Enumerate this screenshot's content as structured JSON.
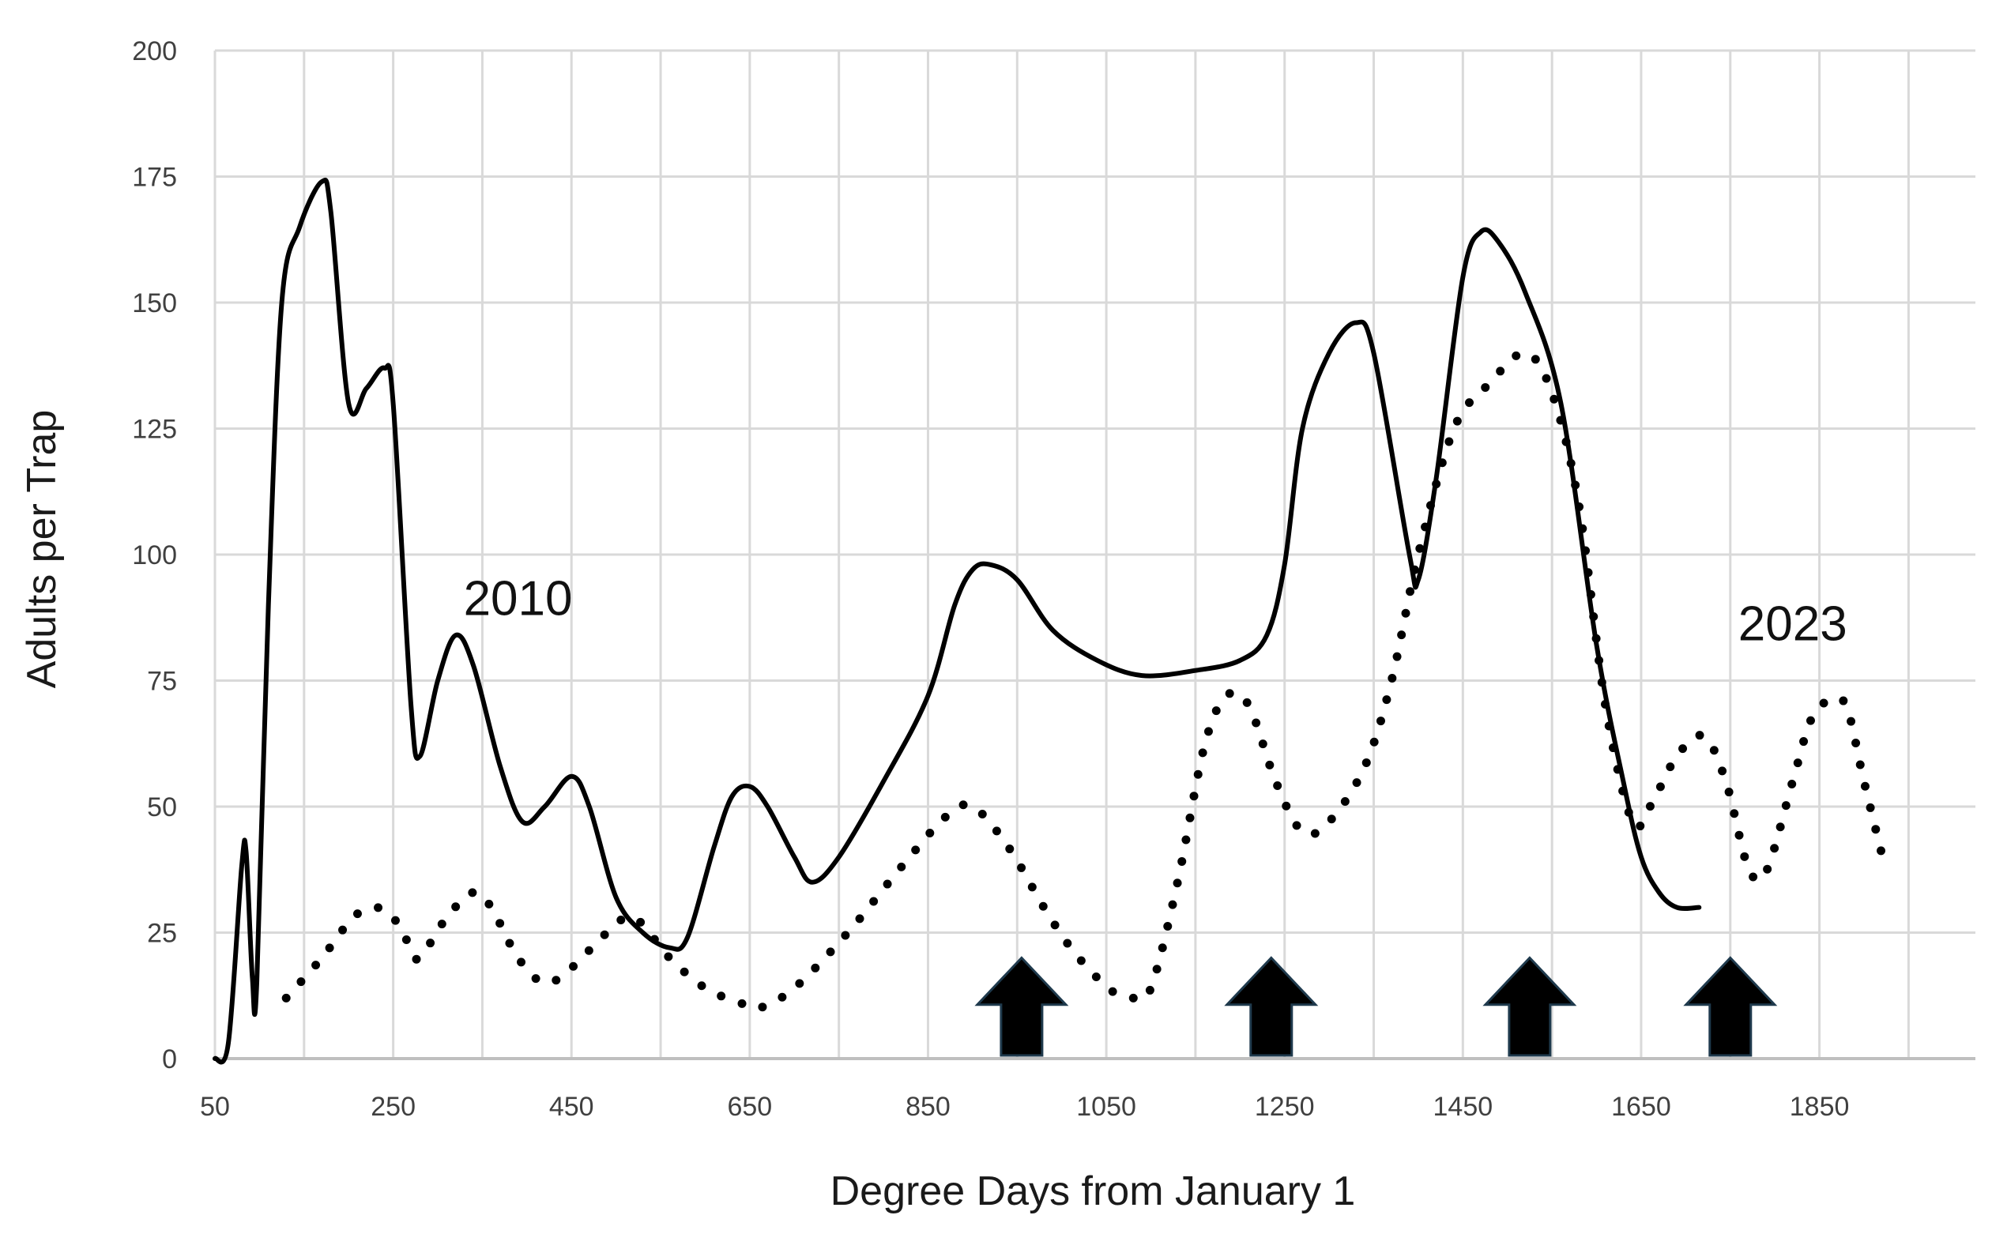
{
  "chart_data": {
    "type": "line",
    "title": "",
    "xlabel": "Degree Days from January 1",
    "ylabel": "Adults per Trap",
    "xlim": [
      50,
      2025
    ],
    "ylim": [
      0,
      200
    ],
    "x_ticks": [
      50,
      250,
      450,
      650,
      850,
      1050,
      1250,
      1450,
      1650,
      1850
    ],
    "y_ticks": [
      0,
      25,
      50,
      75,
      100,
      125,
      150,
      175,
      200
    ],
    "x_gridlines": [
      50,
      150,
      250,
      350,
      450,
      550,
      650,
      750,
      850,
      950,
      1050,
      1150,
      1250,
      1350,
      1450,
      1550,
      1650,
      1750,
      1850,
      1950
    ],
    "grid": true,
    "legend": "none",
    "series": [
      {
        "name": "2010",
        "style": "solid",
        "color": "#000000",
        "points": [
          [
            50,
            0
          ],
          [
            65,
            3
          ],
          [
            80,
            38
          ],
          [
            85,
            41
          ],
          [
            92,
            16
          ],
          [
            97,
            15
          ],
          [
            110,
            90
          ],
          [
            125,
            150
          ],
          [
            145,
            165
          ],
          [
            170,
            174
          ],
          [
            180,
            168
          ],
          [
            200,
            130
          ],
          [
            220,
            133
          ],
          [
            240,
            137
          ],
          [
            250,
            130
          ],
          [
            270,
            70
          ],
          [
            280,
            60
          ],
          [
            300,
            75
          ],
          [
            320,
            84
          ],
          [
            340,
            78
          ],
          [
            370,
            58
          ],
          [
            395,
            47
          ],
          [
            420,
            50
          ],
          [
            450,
            56
          ],
          [
            470,
            50
          ],
          [
            500,
            32
          ],
          [
            530,
            25
          ],
          [
            560,
            22
          ],
          [
            580,
            24
          ],
          [
            610,
            42
          ],
          [
            630,
            52
          ],
          [
            650,
            54
          ],
          [
            670,
            50
          ],
          [
            700,
            40
          ],
          [
            720,
            35
          ],
          [
            750,
            40
          ],
          [
            800,
            55
          ],
          [
            850,
            72
          ],
          [
            880,
            90
          ],
          [
            900,
            97
          ],
          [
            920,
            98
          ],
          [
            950,
            95
          ],
          [
            990,
            85
          ],
          [
            1040,
            79
          ],
          [
            1090,
            76
          ],
          [
            1150,
            77
          ],
          [
            1200,
            79
          ],
          [
            1230,
            84
          ],
          [
            1250,
            98
          ],
          [
            1270,
            125
          ],
          [
            1300,
            140
          ],
          [
            1330,
            146
          ],
          [
            1350,
            140
          ],
          [
            1390,
            100
          ],
          [
            1400,
            95
          ],
          [
            1420,
            115
          ],
          [
            1450,
            155
          ],
          [
            1470,
            164
          ],
          [
            1490,
            162
          ],
          [
            1520,
            152
          ],
          [
            1560,
            130
          ],
          [
            1600,
            82
          ],
          [
            1630,
            55
          ],
          [
            1650,
            40
          ],
          [
            1670,
            33
          ],
          [
            1690,
            30
          ],
          [
            1715,
            30
          ]
        ]
      },
      {
        "name": "2023",
        "style": "dotted",
        "color": "#000000",
        "points": [
          [
            130,
            12
          ],
          [
            170,
            20
          ],
          [
            205,
            28
          ],
          [
            230,
            30
          ],
          [
            250,
            28
          ],
          [
            270,
            22
          ],
          [
            280,
            20
          ],
          [
            310,
            28
          ],
          [
            340,
            33
          ],
          [
            360,
            30
          ],
          [
            390,
            20
          ],
          [
            420,
            15
          ],
          [
            450,
            18
          ],
          [
            490,
            25
          ],
          [
            520,
            28
          ],
          [
            560,
            20
          ],
          [
            600,
            14
          ],
          [
            640,
            11
          ],
          [
            660,
            10
          ],
          [
            700,
            14
          ],
          [
            760,
            25
          ],
          [
            820,
            38
          ],
          [
            870,
            48
          ],
          [
            900,
            50
          ],
          [
            940,
            42
          ],
          [
            980,
            30
          ],
          [
            1010,
            22
          ],
          [
            1040,
            16
          ],
          [
            1060,
            13
          ],
          [
            1080,
            12
          ],
          [
            1100,
            14
          ],
          [
            1130,
            35
          ],
          [
            1160,
            62
          ],
          [
            1185,
            72
          ],
          [
            1210,
            70
          ],
          [
            1240,
            55
          ],
          [
            1270,
            45
          ],
          [
            1300,
            47
          ],
          [
            1340,
            58
          ],
          [
            1370,
            75
          ],
          [
            1400,
            100
          ],
          [
            1440,
            125
          ],
          [
            1480,
            134
          ],
          [
            1520,
            140
          ],
          [
            1550,
            132
          ],
          [
            1580,
            110
          ],
          [
            1610,
            70
          ],
          [
            1640,
            47
          ],
          [
            1660,
            50
          ],
          [
            1690,
            60
          ],
          [
            1720,
            64
          ],
          [
            1745,
            55
          ],
          [
            1770,
            38
          ],
          [
            1790,
            37
          ],
          [
            1820,
            55
          ],
          [
            1840,
            67
          ],
          [
            1860,
            71
          ],
          [
            1880,
            70
          ],
          [
            1900,
            55
          ],
          [
            1925,
            37
          ]
        ]
      }
    ],
    "annotations": [
      {
        "text": "2010",
        "x": 390,
        "y": 88
      },
      {
        "text": "2023",
        "x": 1820,
        "y": 83
      }
    ],
    "arrows": [
      {
        "x": 955,
        "y_base": 0,
        "y_tip": 20
      },
      {
        "x": 1235,
        "y_base": 0,
        "y_tip": 20
      },
      {
        "x": 1525,
        "y_base": 0,
        "y_tip": 20
      },
      {
        "x": 1750,
        "y_base": 0,
        "y_tip": 20
      }
    ]
  }
}
